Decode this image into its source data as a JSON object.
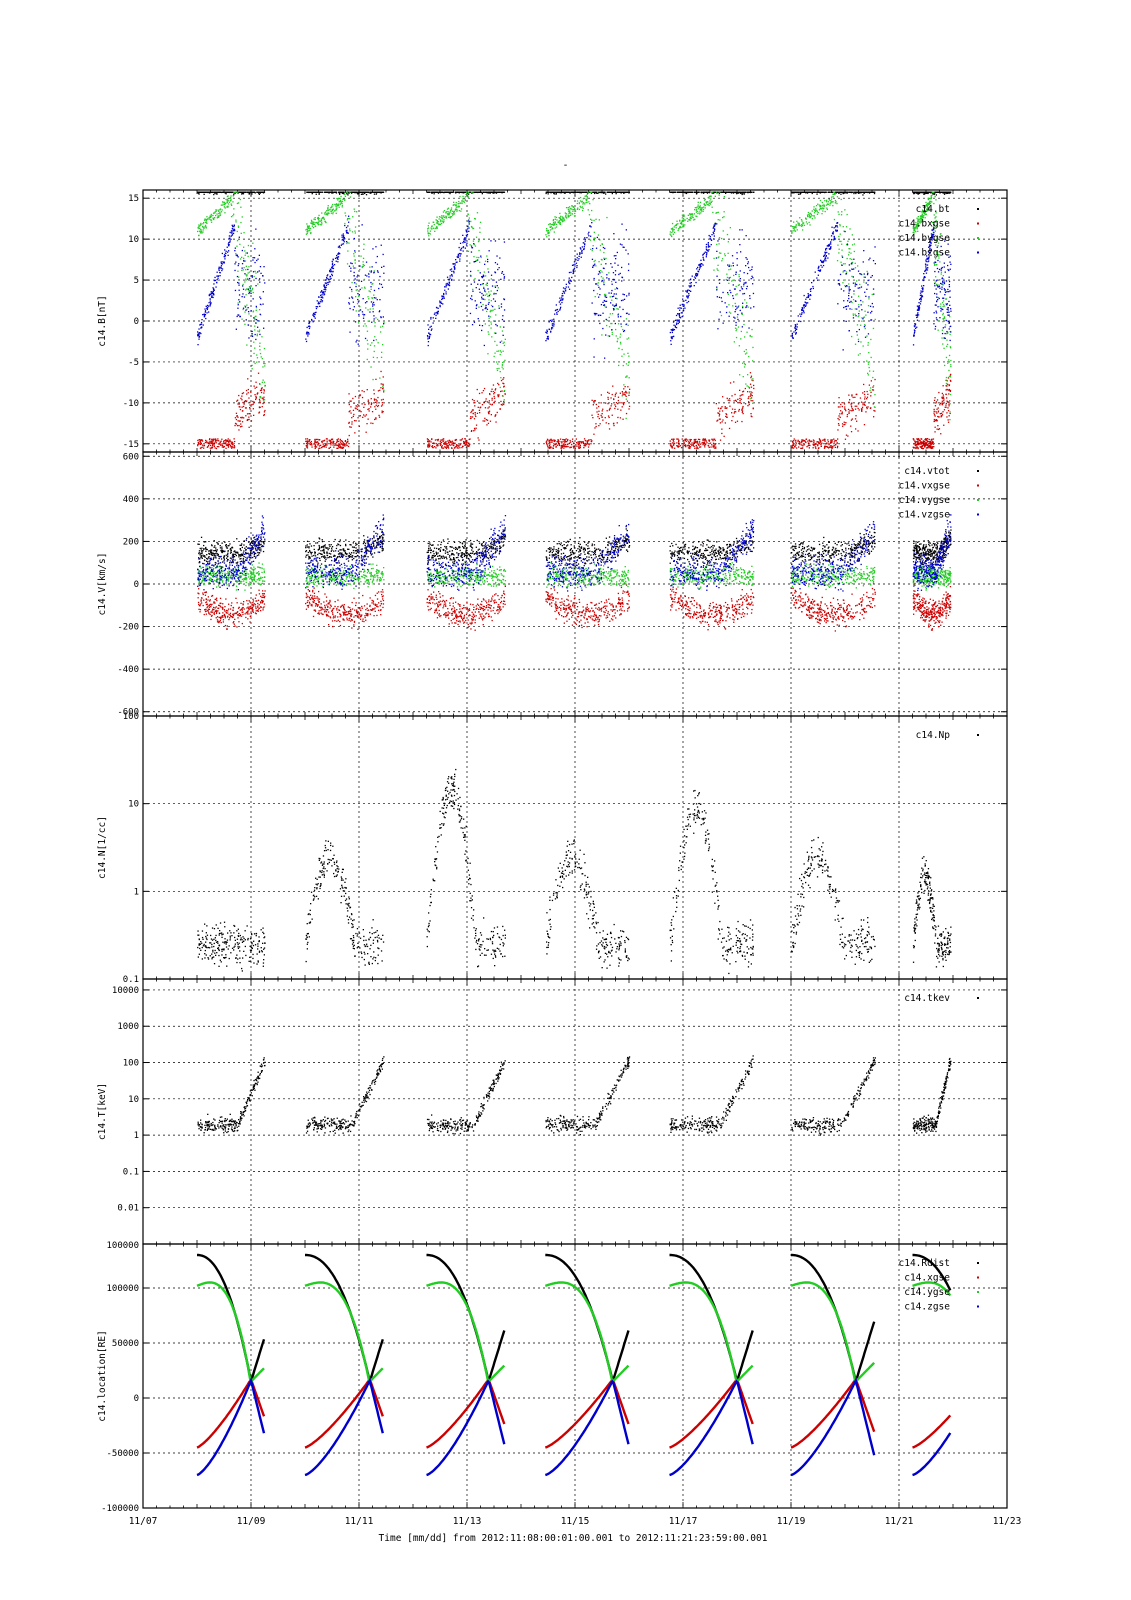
{
  "page": {
    "title": "-",
    "xlabel": "Time [mm/dd]  from 2012:11:08:00:01:00.001  to  2012:11:21:23:59:00.001"
  },
  "x_axis": {
    "range_days": [
      7,
      23
    ],
    "ticks": [
      7,
      9,
      11,
      13,
      15,
      17,
      19,
      21,
      23
    ],
    "tick_labels": [
      "11/07",
      "11/09",
      "11/11",
      "11/13",
      "11/15",
      "11/17",
      "11/19",
      "11/21",
      "11/23"
    ]
  },
  "segments": [
    {
      "start": 8.0,
      "end": 9.25,
      "perigee": 9.0
    },
    {
      "start": 10.0,
      "end": 11.45,
      "perigee": 11.2
    },
    {
      "start": 12.25,
      "end": 13.7,
      "perigee": 13.4
    },
    {
      "start": 14.45,
      "end": 16.0,
      "perigee": 15.7
    },
    {
      "start": 16.75,
      "end": 18.3,
      "perigee": 18.0
    },
    {
      "start": 19.0,
      "end": 20.55,
      "perigee": 20.2
    },
    {
      "start": 21.25,
      "end": 21.95,
      "perigee": 0
    }
  ],
  "colors": {
    "black": "#000000",
    "red": "#cc0000",
    "green": "#22cc22",
    "blue": "#0000cc"
  },
  "chart_data": [
    {
      "type": "scatter",
      "ylabel": "c14.B[nT]",
      "ylim": [
        -16,
        16
      ],
      "yticks": [
        -15,
        -10,
        -5,
        0,
        5,
        10,
        15
      ],
      "ytick_labels": [
        "-15",
        "-10",
        "-5",
        "0",
        "5",
        "10",
        "15"
      ],
      "series": [
        {
          "name": "c14.bt",
          "color": "#000000"
        },
        {
          "name": "c14.bxgse",
          "color": "#cc0000"
        },
        {
          "name": "c14.bygse",
          "color": "#22cc22"
        },
        {
          "name": "c14.bzgse",
          "color": "#0000cc"
        }
      ],
      "legend": "top-right"
    },
    {
      "type": "scatter",
      "ylabel": "c14.V[km/s]",
      "ylim": [
        -620,
        620
      ],
      "yticks": [
        -600,
        -400,
        -200,
        0,
        200,
        400,
        600
      ],
      "ytick_labels": [
        "-600",
        "-400",
        "-200",
        "0",
        "200",
        "400",
        "600"
      ],
      "series": [
        {
          "name": "c14.vtot",
          "color": "#000000"
        },
        {
          "name": "c14.vxgse",
          "color": "#cc0000"
        },
        {
          "name": "c14.vygse",
          "color": "#22cc22"
        },
        {
          "name": "c14.vzgse",
          "color": "#0000cc"
        }
      ],
      "legend": "top-right"
    },
    {
      "type": "scatter",
      "ylabel": "c14.N[1/cc]",
      "yscale": "log",
      "ylim": [
        0.1,
        100
      ],
      "yticks": [
        0.1,
        1,
        10,
        100
      ],
      "ytick_labels": [
        "0.1",
        "1",
        "10",
        "100"
      ],
      "series": [
        {
          "name": "c14.Np",
          "color": "#000000"
        }
      ],
      "legend": "top-right"
    },
    {
      "type": "scatter",
      "ylabel": "c14.T[keV]",
      "yscale": "log",
      "ylim": [
        0.001,
        20000
      ],
      "yticks": [
        0.01,
        0.1,
        1,
        10,
        100,
        1000,
        10000
      ],
      "ytick_labels": [
        "0.01",
        "0.1",
        "1",
        "10",
        "100",
        "1000",
        "10000"
      ],
      "series": [
        {
          "name": "c14.tkev",
          "color": "#000000"
        }
      ],
      "legend": "top-right"
    },
    {
      "type": "line",
      "ylabel": "c14.location[RE]",
      "ylim": [
        -100000,
        140000
      ],
      "yticks": [
        -100000,
        -50000,
        0,
        50000,
        100000
      ],
      "ytick_labels": [
        "-100000",
        "-50000",
        "0",
        "50000",
        "100000"
      ],
      "top_overlap_label": "100000",
      "series": [
        {
          "name": "c14.Rdist",
          "color": "#000000"
        },
        {
          "name": "c14.xgse",
          "color": "#cc0000"
        },
        {
          "name": "c14.ygse",
          "color": "#22cc22"
        },
        {
          "name": "c14.zgse",
          "color": "#0000cc"
        }
      ],
      "legend": "top-right"
    }
  ]
}
